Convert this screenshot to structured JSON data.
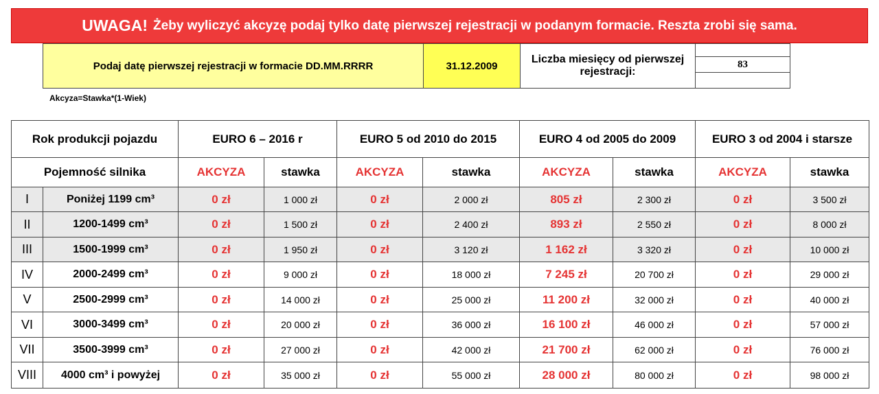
{
  "banner": {
    "label": "UWAGA!",
    "text": "Żeby wyliczyć akcyzę podaj tylko datę pierwszej rejestracji w podanym formacie. Reszta zrobi się sama."
  },
  "input": {
    "prompt": "Podaj datę pierwszej rejestracji w formacie DD.MM.RRRR",
    "date": "31.12.2009",
    "months_label": "Liczba miesięcy od pierwszej rejestracji:",
    "months": "83"
  },
  "formula": "Akcyza=Stawka*(1-Wiek)",
  "table": {
    "corner_top": "Rok produkcji pojazdu",
    "corner_bottom": "Pojemność silnika",
    "groups": [
      "EURO 6 – 2016 r",
      "EURO 5 od 2010 do 2015",
      "EURO 4 od 2005 do 2009",
      "EURO 3 od 2004 i starsze"
    ],
    "subheaders": [
      "AKCYZA",
      "stawka",
      "AKCYZA",
      "stawka",
      "AKCYZA",
      "stawka",
      "AKCYZA",
      "stawka"
    ],
    "rows": [
      {
        "class": "I",
        "capacity": "Poniżej 1199 cm³",
        "cells": [
          "0 zł",
          "1 000 zł",
          "0 zł",
          "2 000 zł",
          "805 zł",
          "2 300 zł",
          "0 zł",
          "3 500 zł"
        ]
      },
      {
        "class": "II",
        "capacity": "1200-1499 cm³",
        "cells": [
          "0 zł",
          "1 500 zł",
          "0 zł",
          "2 400 zł",
          "893 zł",
          "2 550 zł",
          "0 zł",
          "8 000 zł"
        ]
      },
      {
        "class": "III",
        "capacity": "1500-1999 cm³",
        "cells": [
          "0 zł",
          "1 950 zł",
          "0 zł",
          "3 120 zł",
          "1 162 zł",
          "3 320 zł",
          "0 zł",
          "10 000 zł"
        ]
      },
      {
        "class": "IV",
        "capacity": "2000-2499 cm³",
        "cells": [
          "0 zł",
          "9 000 zł",
          "0 zł",
          "18 000 zł",
          "7 245 zł",
          "20 700 zł",
          "0 zł",
          "29 000 zł"
        ]
      },
      {
        "class": "V",
        "capacity": "2500-2999 cm³",
        "cells": [
          "0 zł",
          "14 000 zł",
          "0 zł",
          "25 000 zł",
          "11 200 zł",
          "32 000 zł",
          "0 zł",
          "40 000 zł"
        ]
      },
      {
        "class": "VI",
        "capacity": "3000-3499 cm³",
        "cells": [
          "0 zł",
          "20 000 zł",
          "0 zł",
          "36 000 zł",
          "16 100 zł",
          "46 000 zł",
          "0 zł",
          "57 000 zł"
        ]
      },
      {
        "class": "VII",
        "capacity": "3500-3999 cm³",
        "cells": [
          "0 zł",
          "27 000 zł",
          "0 zł",
          "42 000 zł",
          "21 700 zł",
          "62 000 zł",
          "0 zł",
          "76 000 zł"
        ]
      },
      {
        "class": "VIII",
        "capacity": "4000 cm³ i powyżej",
        "cells": [
          "0 zł",
          "35 000 zł",
          "0 zł",
          "55 000 zł",
          "28 000 zł",
          "80 000 zł",
          "0 zł",
          "98 000 zł"
        ]
      }
    ]
  }
}
